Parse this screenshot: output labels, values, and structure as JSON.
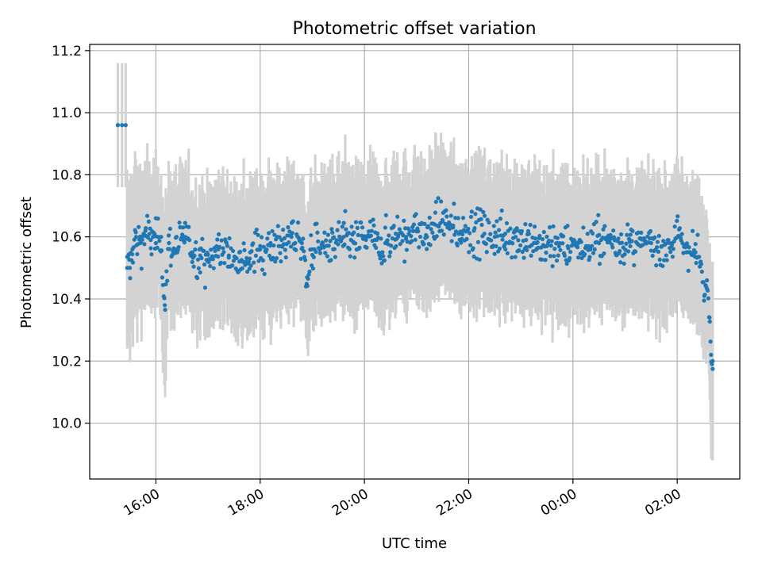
{
  "chart_data": {
    "type": "scatter",
    "title": "Photometric offset variation",
    "xlabel": "UTC time",
    "ylabel": "Photometric offset",
    "x_unit": "hours since 00:00 UTC of first night (16:00 = 16, 02:00 = 26)",
    "xlim": [
      14.73,
      27.2
    ],
    "ylim": [
      9.82,
      11.22
    ],
    "xticks": [
      {
        "value": 16,
        "label": "16:00"
      },
      {
        "value": 18,
        "label": "18:00"
      },
      {
        "value": 20,
        "label": "20:00"
      },
      {
        "value": 22,
        "label": "22:00"
      },
      {
        "value": 24,
        "label": "00:00"
      },
      {
        "value": 26,
        "label": "02:00"
      }
    ],
    "yticks": [
      {
        "value": 10.0,
        "label": "10.0"
      },
      {
        "value": 10.2,
        "label": "10.2"
      },
      {
        "value": 10.4,
        "label": "10.4"
      },
      {
        "value": 10.6,
        "label": "10.6"
      },
      {
        "value": 10.8,
        "label": "10.8"
      },
      {
        "value": 11.0,
        "label": "11.0"
      },
      {
        "value": 11.2,
        "label": "11.2"
      }
    ],
    "grid": true,
    "legend": false,
    "series": [
      {
        "name": "offset",
        "color": "#1f77b4",
        "errorbar_color": "#d3d3d3",
        "errorbar_halfwidth_typical": 0.2,
        "points": [
          [
            15.27,
            10.96,
            0.2
          ],
          [
            15.35,
            10.96,
            0.2
          ],
          [
            15.42,
            10.96,
            0.2
          ],
          [
            15.45,
            10.5,
            0.26
          ],
          [
            15.5,
            10.5,
            0.25
          ],
          [
            15.55,
            10.56,
            0.24
          ],
          [
            15.62,
            10.6,
            0.22
          ],
          [
            15.7,
            10.58,
            0.21
          ],
          [
            15.8,
            10.62,
            0.2
          ],
          [
            15.9,
            10.59,
            0.2
          ],
          [
            16.0,
            10.58,
            0.2
          ],
          [
            16.1,
            10.6,
            0.2
          ],
          [
            16.17,
            10.38,
            0.26
          ],
          [
            16.25,
            10.58,
            0.2
          ],
          [
            16.4,
            10.56,
            0.2
          ],
          [
            16.55,
            10.6,
            0.2
          ],
          [
            16.7,
            10.55,
            0.2
          ],
          [
            16.85,
            10.54,
            0.2
          ],
          [
            17.0,
            10.52,
            0.2
          ],
          [
            17.2,
            10.56,
            0.2
          ],
          [
            17.4,
            10.54,
            0.2
          ],
          [
            17.6,
            10.55,
            0.2
          ],
          [
            17.8,
            10.53,
            0.2
          ],
          [
            18.0,
            10.56,
            0.2
          ],
          [
            18.2,
            10.58,
            0.2
          ],
          [
            18.4,
            10.57,
            0.2
          ],
          [
            18.6,
            10.6,
            0.2
          ],
          [
            18.8,
            10.58,
            0.2
          ],
          [
            18.9,
            10.47,
            0.2
          ],
          [
            19.0,
            10.56,
            0.2
          ],
          [
            19.2,
            10.58,
            0.2
          ],
          [
            19.4,
            10.56,
            0.2
          ],
          [
            19.6,
            10.6,
            0.2
          ],
          [
            19.8,
            10.58,
            0.2
          ],
          [
            20.0,
            10.6,
            0.2
          ],
          [
            20.2,
            10.59,
            0.2
          ],
          [
            20.4,
            10.58,
            0.2
          ],
          [
            20.6,
            10.61,
            0.2
          ],
          [
            20.8,
            10.6,
            0.2
          ],
          [
            21.0,
            10.62,
            0.2
          ],
          [
            21.2,
            10.6,
            0.2
          ],
          [
            21.35,
            10.64,
            0.2
          ],
          [
            21.5,
            10.65,
            0.2
          ],
          [
            21.7,
            10.63,
            0.2
          ],
          [
            21.9,
            10.62,
            0.2
          ],
          [
            22.1,
            10.62,
            0.2
          ],
          [
            22.3,
            10.61,
            0.2
          ],
          [
            22.5,
            10.6,
            0.2
          ],
          [
            22.7,
            10.61,
            0.2
          ],
          [
            22.9,
            10.6,
            0.2
          ],
          [
            23.1,
            10.59,
            0.2
          ],
          [
            23.3,
            10.58,
            0.2
          ],
          [
            23.5,
            10.57,
            0.2
          ],
          [
            23.7,
            10.58,
            0.2
          ],
          [
            23.9,
            10.57,
            0.2
          ],
          [
            24.1,
            10.58,
            0.2
          ],
          [
            24.3,
            10.57,
            0.2
          ],
          [
            24.5,
            10.58,
            0.2
          ],
          [
            24.7,
            10.59,
            0.2
          ],
          [
            24.9,
            10.58,
            0.2
          ],
          [
            25.1,
            10.57,
            0.2
          ],
          [
            25.3,
            10.57,
            0.2
          ],
          [
            25.5,
            10.58,
            0.2
          ],
          [
            25.7,
            10.57,
            0.2
          ],
          [
            25.9,
            10.58,
            0.2
          ],
          [
            26.05,
            10.6,
            0.2
          ],
          [
            26.2,
            10.57,
            0.2
          ],
          [
            26.35,
            10.55,
            0.2
          ],
          [
            26.45,
            10.52,
            0.2
          ],
          [
            26.52,
            10.41,
            0.2
          ],
          [
            26.57,
            10.46,
            0.2
          ],
          [
            26.62,
            10.34,
            0.2
          ],
          [
            26.65,
            10.22,
            0.3
          ],
          [
            26.68,
            10.2,
            0.32
          ]
        ],
        "noise_amplitude": 0.035
      }
    ]
  }
}
